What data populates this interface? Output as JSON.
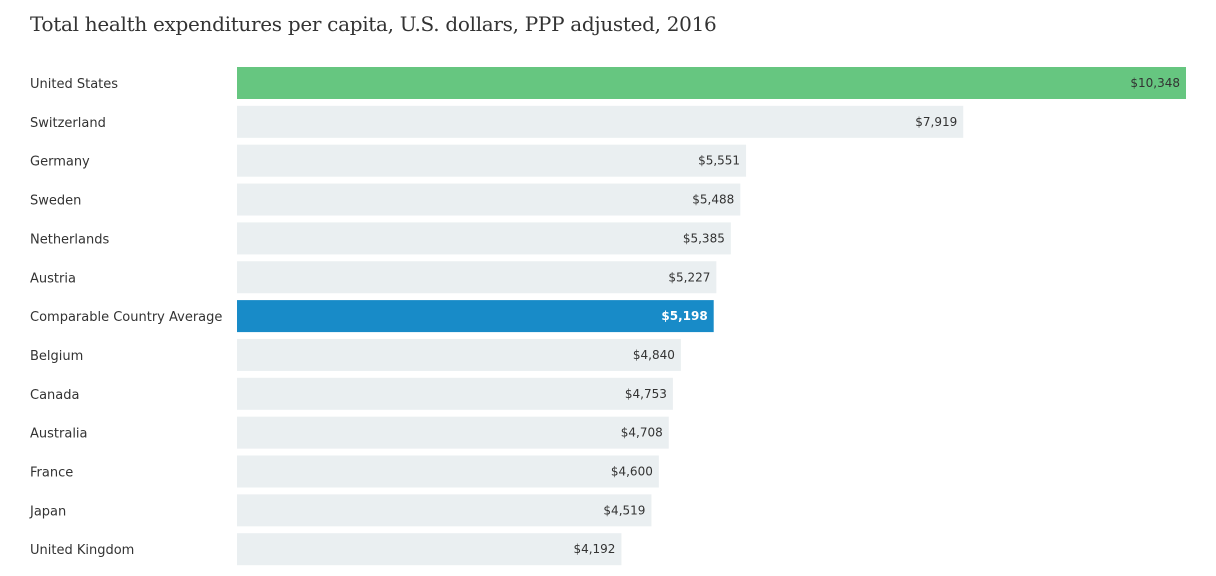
{
  "chart_data": {
    "type": "bar",
    "orientation": "horizontal",
    "title": "Total health expenditures per capita, U.S. dollars, PPP adjusted, 2016",
    "categories": [
      "United States",
      "Switzerland",
      "Germany",
      "Sweden",
      "Netherlands",
      "Austria",
      "Comparable Country Average",
      "Belgium",
      "Canada",
      "Australia",
      "France",
      "Japan",
      "United Kingdom"
    ],
    "values": [
      10348,
      7919,
      5551,
      5488,
      5385,
      5227,
      5198,
      4840,
      4753,
      4708,
      4600,
      4519,
      4192
    ],
    "data_labels": [
      "$10,348",
      "$7,919",
      "$5,551",
      "$5,488",
      "$5,385",
      "$5,227",
      "$5,198",
      "$4,840",
      "$4,753",
      "$4,708",
      "$4,600",
      "$4,519",
      "$4,192"
    ],
    "xlim": [
      0,
      10348
    ],
    "grid": false,
    "legend": "none",
    "colors": {
      "default_bar": "#eaeff1",
      "highlight_us": "#66c680",
      "highlight_average": "#188bc8",
      "text": "#333333"
    },
    "highlights": {
      "United States": "highlight_us",
      "Comparable Country Average": "highlight_average"
    }
  }
}
